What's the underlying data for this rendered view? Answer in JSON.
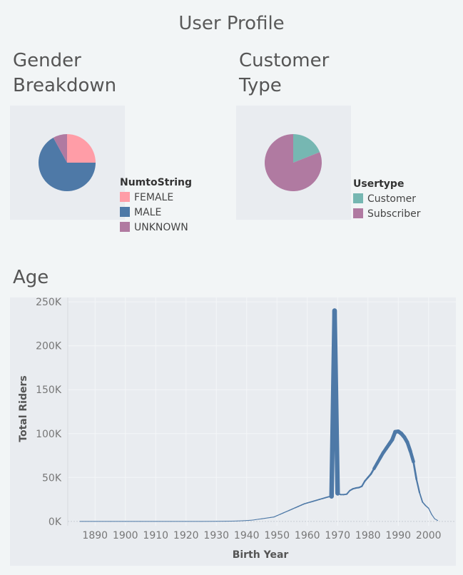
{
  "dashboard": {
    "title": "User Profile"
  },
  "gender": {
    "title_line1": "Gender",
    "title_line2": "Breakdown",
    "legend_title": "NumtoString"
  },
  "customer": {
    "title_line1": "Customer",
    "title_line2": "Type",
    "legend_title": "Usertype"
  },
  "age": {
    "title": "Age"
  },
  "chart_data": [
    {
      "type": "pie",
      "title": "Gender Breakdown",
      "legend_title": "NumtoString",
      "categories": [
        "FEMALE",
        "MALE",
        "UNKNOWN"
      ],
      "values": [
        25,
        67,
        8
      ],
      "colors": [
        "#ff9da7",
        "#4e79a7",
        "#b07aa1"
      ]
    },
    {
      "type": "pie",
      "title": "Customer Type",
      "legend_title": "Usertype",
      "categories": [
        "Customer",
        "Subscriber"
      ],
      "values": [
        19,
        81
      ],
      "colors": [
        "#76b7b2",
        "#b07aa1"
      ]
    },
    {
      "type": "line",
      "title": "Age",
      "xlabel": "Birth Year",
      "ylabel": "Total Riders",
      "x_ticks": [
        1890,
        1900,
        1910,
        1920,
        1930,
        1940,
        1950,
        1960,
        1970,
        1980,
        1990,
        2000
      ],
      "y_ticks": [
        0,
        50000,
        100000,
        150000,
        200000,
        250000
      ],
      "y_tick_labels": [
        "0K",
        "50K",
        "100K",
        "150K",
        "200K",
        "250K"
      ],
      "xlim": [
        1881,
        2009
      ],
      "ylim": [
        -5000,
        255000
      ],
      "grid": true,
      "color": "#4e79a7",
      "series": [
        {
          "x": [
            1885,
            1890,
            1895,
            1900,
            1905,
            1910,
            1915,
            1920,
            1925,
            1930,
            1933,
            1935,
            1937,
            1939,
            1940,
            1941,
            1942,
            1943,
            1944,
            1945,
            1946,
            1947,
            1948,
            1949,
            1950,
            1951,
            1952,
            1953,
            1954,
            1955,
            1956,
            1957,
            1958,
            1959,
            1960,
            1961,
            1962,
            1963,
            1964,
            1965,
            1966,
            1967,
            1968,
            1969,
            1970,
            1971,
            1972,
            1973,
            1974,
            1975,
            1976,
            1977,
            1978,
            1979,
            1980,
            1981,
            1982,
            1983,
            1984,
            1985,
            1986,
            1987,
            1988,
            1989,
            1990,
            1991,
            1992,
            1993,
            1994,
            1995,
            1996,
            1997,
            1998,
            1999,
            2000,
            2001,
            2002,
            2003
          ],
          "y": [
            0,
            0,
            0,
            0,
            0,
            0,
            0,
            0,
            0,
            100,
            200,
            300,
            500,
            800,
            1000,
            1200,
            1500,
            2000,
            2500,
            3000,
            3500,
            4000,
            4500,
            5000,
            6500,
            8000,
            9500,
            11000,
            12500,
            14000,
            15500,
            17000,
            18500,
            20000,
            21000,
            22000,
            23000,
            24000,
            25000,
            26000,
            27000,
            28000,
            28500,
            240000,
            32000,
            30500,
            30500,
            31000,
            35000,
            37000,
            38000,
            38500,
            40000,
            46000,
            50000,
            54000,
            60000,
            66000,
            72000,
            78000,
            83000,
            88000,
            93000,
            102000,
            102500,
            100000,
            96000,
            90000,
            80000,
            68000,
            48000,
            33000,
            22000,
            18000,
            15000,
            8000,
            3000,
            1000
          ]
        }
      ]
    }
  ]
}
